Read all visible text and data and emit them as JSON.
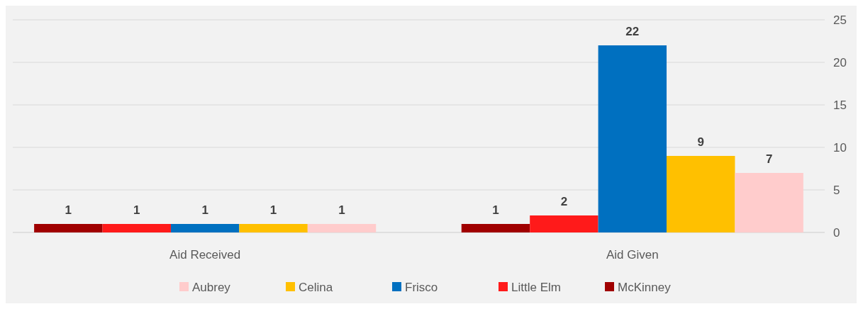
{
  "chart_data": {
    "type": "bar",
    "categories": [
      "Aid Received",
      "Aid Given"
    ],
    "series": [
      {
        "name": "McKinney",
        "color": "#a00000",
        "values": [
          1,
          1
        ]
      },
      {
        "name": "Little Elm",
        "color": "#ff1a1a",
        "values": [
          1,
          2
        ]
      },
      {
        "name": "Frisco",
        "color": "#0070c0",
        "values": [
          1,
          22
        ]
      },
      {
        "name": "Celina",
        "color": "#ffc000",
        "values": [
          1,
          9
        ]
      },
      {
        "name": "Aubrey",
        "color": "#ffcccc",
        "values": [
          1,
          7
        ]
      }
    ],
    "ylim": [
      0,
      25
    ],
    "yticks": [
      0,
      5,
      10,
      15,
      20,
      25
    ],
    "grid": "y",
    "legend": "bottom",
    "data_labels": true
  }
}
